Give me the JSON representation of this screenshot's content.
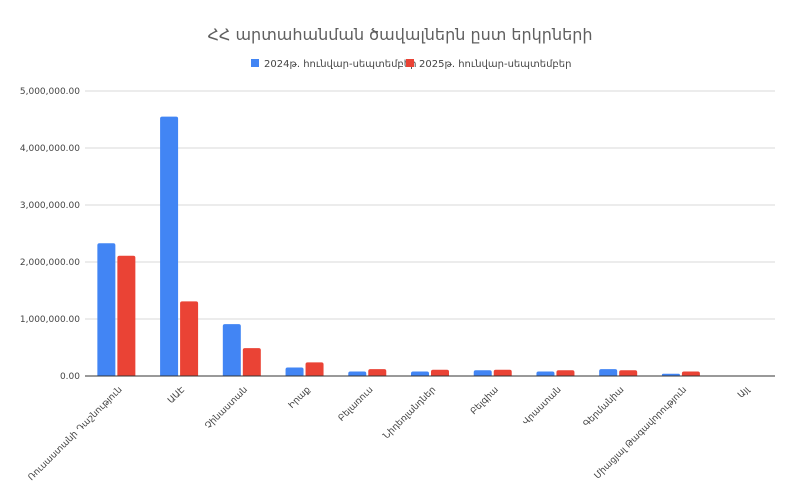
{
  "chart_data": {
    "type": "bar",
    "title": "ՀՀ արտահանման ծավալներն ըստ երկրների",
    "xlabel": "",
    "ylabel": "",
    "ylim": [
      0,
      5000000
    ],
    "y_ticks": [
      0,
      1000000,
      2000000,
      3000000,
      4000000,
      5000000
    ],
    "y_tick_labels": [
      "0.00",
      "1,000,000.00",
      "2,000,000.00",
      "3,000,000.00",
      "4,000,000.00",
      "5,000,000.00"
    ],
    "grid": true,
    "legend_position": "top",
    "categories": [
      "Ռուսաստանի Դաշնություն",
      "ԱԱԷ",
      "Չինաստան",
      "Իրաք",
      "Բելառուս",
      "Նիդեռլանդներ",
      "Բելգիա",
      "Վրաստան",
      "Գերմանիա",
      "Միացյալ Թագավորություն",
      "Այլ"
    ],
    "category_labels": [
      "Ռուսաստանի Դաշնություն",
      "ԱԱԷ",
      "Չինաստան",
      "Իրաք",
      "Բելառուս",
      "Նիդեռլանդներ",
      "Բելգիա",
      "Վրաստան",
      "Գերմանիա",
      "Միացյալ Թագավորություն",
      "Այլ"
    ],
    "series": [
      {
        "name": "2024թ. հունվար-սեպտեմբեր",
        "color": "#4285f4",
        "values": [
          2330000,
          4550000,
          910000,
          150000,
          80000,
          80000,
          100000,
          80000,
          120000,
          40000,
          0
        ]
      },
      {
        "name": "2025թ. հունվար-սեպտեմբեր",
        "color": "#ea4335",
        "values": [
          2110000,
          1310000,
          490000,
          240000,
          120000,
          110000,
          110000,
          100000,
          100000,
          80000,
          0
        ]
      }
    ]
  }
}
